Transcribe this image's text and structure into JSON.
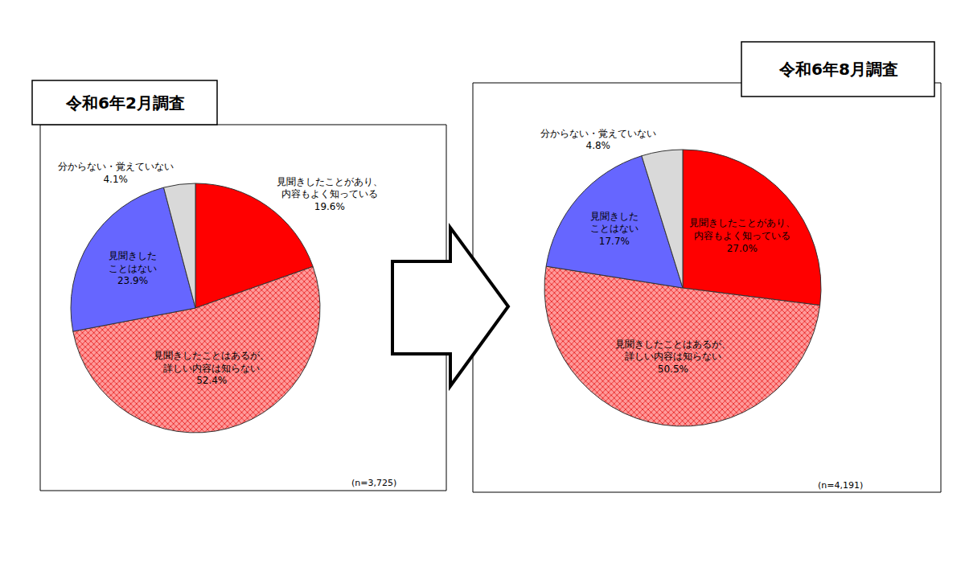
{
  "chart_data": [
    {
      "type": "pie",
      "title": "令和6年2月調査",
      "categories": [
        "見聞きしたことがあり、\n内容もよく知っている",
        "見聞きしたことはあるが、\n詳しい内容は知らない",
        "見聞きした\nことはない",
        "分からない・覚えていない"
      ],
      "values": [
        19.6,
        52.4,
        23.9,
        4.1
      ],
      "value_labels": [
        "19.6%",
        "52.4%",
        "23.9%",
        "4.1%"
      ],
      "colors": [
        "#ff0000",
        "#ff9a9a",
        "#6666ff",
        "#d9d9d9"
      ],
      "data_labels": true,
      "annotations": [
        "(n=3,725)"
      ]
    },
    {
      "type": "pie",
      "title": "令和6年8月調査",
      "categories": [
        "見聞きしたことがあり、\n内容もよく知っている",
        "見聞きしたことはあるが、\n詳しい内容は知らない",
        "見聞きした\nことはない",
        "分からない・覚えていない"
      ],
      "values": [
        27.0,
        50.5,
        17.7,
        4.8
      ],
      "value_labels": [
        "27.0%",
        "50.5%",
        "17.7%",
        "4.8%"
      ],
      "colors": [
        "#ff0000",
        "#ff9a9a",
        "#6666ff",
        "#d9d9d9"
      ],
      "data_labels": true,
      "annotations": [
        "(n=4,191)"
      ]
    }
  ]
}
